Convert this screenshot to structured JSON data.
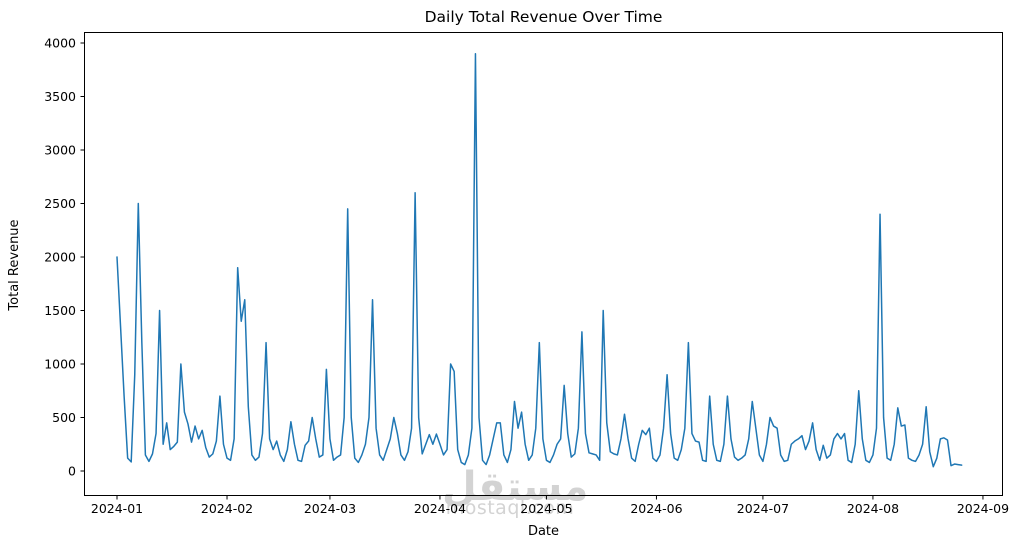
{
  "figure": {
    "title": "Daily Total Revenue Over Time",
    "xlabel": "Date",
    "ylabel": "Total Revenue"
  },
  "watermark": {
    "arabic": "مستقل",
    "latin": "mostaql.com",
    "color": "#d3d3d3"
  },
  "chart_data": {
    "type": "line",
    "title": "Daily Total Revenue Over Time",
    "xlabel": "Date",
    "ylabel": "Total Revenue",
    "legend": "none",
    "grid": false,
    "line_color": "#1f77b4",
    "series_name": "Total Revenue",
    "start_date": "2024-01-01",
    "end_date": "2024-08-26",
    "frequency": "daily",
    "xtick_labels": [
      "2024-01",
      "2024-02",
      "2024-03",
      "2024-04",
      "2024-05",
      "2024-06",
      "2024-07",
      "2024-08",
      "2024-09"
    ],
    "xtick_day_offsets": [
      0,
      31,
      60,
      91,
      121,
      152,
      182,
      213,
      244
    ],
    "yticks": [
      0,
      500,
      1000,
      1500,
      2000,
      2500,
      3000,
      3500,
      4000
    ],
    "ylim": [
      -195,
      4095
    ],
    "xlim_days": [
      -9.3,
      253
    ],
    "values": [
      2000,
      1350,
      700,
      120,
      85,
      900,
      2500,
      1200,
      150,
      90,
      160,
      350,
      1500,
      250,
      450,
      200,
      230,
      270,
      1000,
      550,
      440,
      270,
      420,
      300,
      380,
      220,
      130,
      160,
      280,
      700,
      250,
      120,
      100,
      300,
      1900,
      1400,
      1600,
      600,
      150,
      100,
      130,
      350,
      1200,
      300,
      200,
      280,
      150,
      90,
      200,
      460,
      250,
      100,
      90,
      240,
      280,
      500,
      300,
      130,
      150,
      950,
      300,
      100,
      130,
      150,
      500,
      2450,
      500,
      120,
      80,
      150,
      250,
      500,
      1600,
      400,
      150,
      100,
      200,
      300,
      500,
      350,
      150,
      100,
      180,
      400,
      2600,
      500,
      160,
      250,
      340,
      250,
      345,
      250,
      150,
      200,
      1000,
      930,
      200,
      80,
      60,
      150,
      400,
      3900,
      500,
      100,
      60,
      150,
      300,
      450,
      450,
      150,
      80,
      200,
      650,
      400,
      550,
      250,
      100,
      150,
      400,
      1200,
      300,
      100,
      80,
      150,
      250,
      300,
      800,
      350,
      130,
      160,
      400,
      1300,
      350,
      170,
      160,
      150,
      100,
      1500,
      450,
      180,
      160,
      150,
      300,
      530,
      300,
      120,
      90,
      250,
      380,
      340,
      400,
      120,
      90,
      150,
      400,
      900,
      350,
      120,
      100,
      200,
      400,
      1200,
      350,
      280,
      270,
      100,
      90,
      700,
      250,
      100,
      90,
      250,
      700,
      300,
      130,
      100,
      120,
      150,
      300,
      650,
      400,
      150,
      90,
      250,
      500,
      420,
      400,
      150,
      90,
      100,
      250,
      280,
      300,
      330,
      200,
      280,
      450,
      200,
      100,
      240,
      120,
      150,
      300,
      350,
      300,
      350,
      100,
      80,
      250,
      750,
      300,
      100,
      80,
      150,
      400,
      2400,
      500,
      120,
      100,
      250,
      590,
      420,
      430,
      120,
      100,
      90,
      150,
      250,
      600,
      180,
      40,
      120,
      300,
      310,
      290,
      50,
      65,
      60,
      55
    ]
  }
}
